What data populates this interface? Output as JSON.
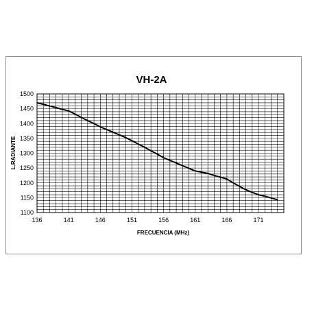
{
  "chart_data": {
    "type": "line",
    "title": "VH-2A",
    "xlabel": "FRECUENCIA  (MHz)",
    "ylabel": "L.RADIANTE",
    "xlim": [
      136,
      175
    ],
    "ylim": [
      1100,
      1500
    ],
    "x_ticks": [
      "136",
      "141",
      "146",
      "151",
      "156",
      "161",
      "166",
      "171"
    ],
    "y_ticks": [
      "1100",
      "1150",
      "1200",
      "1250",
      "1300",
      "1350",
      "1400",
      "1450",
      "1500"
    ],
    "grid": true,
    "series": [
      {
        "color": "#000000",
        "x": [
          136,
          137,
          138,
          139,
          140,
          141,
          142,
          143,
          144,
          145,
          146,
          147,
          148,
          149,
          150,
          151,
          152,
          153,
          154,
          155,
          156,
          157,
          158,
          159,
          160,
          161,
          162,
          163,
          164,
          165,
          166,
          167,
          168,
          169,
          170,
          171,
          172,
          173,
          174
        ],
        "y": [
          1470,
          1465,
          1459,
          1454,
          1448,
          1443,
          1432,
          1421,
          1410,
          1400,
          1389,
          1380,
          1371,
          1362,
          1353,
          1342,
          1331,
          1320,
          1308,
          1297,
          1285,
          1276,
          1267,
          1258,
          1249,
          1240,
          1236,
          1232,
          1225,
          1219,
          1213,
          1200,
          1188,
          1177,
          1168,
          1160,
          1155,
          1149,
          1143
        ]
      }
    ]
  }
}
